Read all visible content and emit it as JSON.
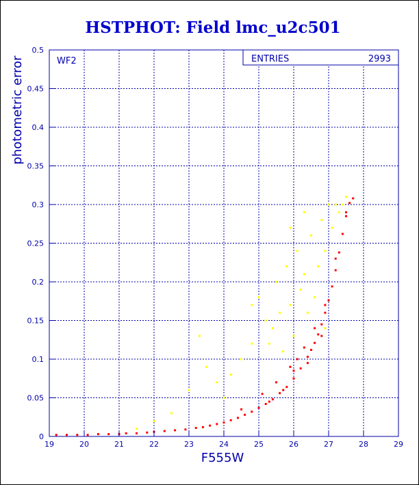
{
  "chart_data": {
    "type": "scatter",
    "title": "HSTPHOT: Field lmc_u2c501",
    "xlabel": "F555W",
    "ylabel": "photometric error",
    "xlim": [
      19,
      29
    ],
    "ylim": [
      0,
      0.5
    ],
    "x_ticks": [
      19,
      20,
      21,
      22,
      23,
      24,
      25,
      26,
      27,
      28,
      29
    ],
    "y_ticks": [
      0,
      0.05,
      0.1,
      0.15,
      0.2,
      0.25,
      0.3,
      0.35,
      0.4,
      0.45,
      0.5
    ],
    "grid": true,
    "panel_label": "WF2",
    "stats_label": "ENTRIES",
    "stats_value": "2993",
    "colors": {
      "title": "#0000cc",
      "axes": "#0000aa",
      "primary_series": "#ff0000",
      "secondary_series": "#ffff00"
    },
    "series": [
      {
        "color": "#ff0000",
        "points": [
          [
            19.2,
            0.002
          ],
          [
            19.5,
            0.002
          ],
          [
            19.8,
            0.002
          ],
          [
            20.1,
            0.002
          ],
          [
            20.4,
            0.003
          ],
          [
            20.7,
            0.003
          ],
          [
            21.0,
            0.003
          ],
          [
            21.2,
            0.004
          ],
          [
            21.5,
            0.004
          ],
          [
            21.8,
            0.005
          ],
          [
            22.0,
            0.006
          ],
          [
            22.3,
            0.007
          ],
          [
            22.6,
            0.008
          ],
          [
            22.9,
            0.009
          ],
          [
            23.2,
            0.011
          ],
          [
            23.4,
            0.012
          ],
          [
            23.6,
            0.014
          ],
          [
            23.8,
            0.016
          ],
          [
            24.0,
            0.018
          ],
          [
            24.2,
            0.021
          ],
          [
            24.4,
            0.024
          ],
          [
            24.6,
            0.028
          ],
          [
            24.8,
            0.032
          ],
          [
            25.0,
            0.037
          ],
          [
            25.2,
            0.042
          ],
          [
            25.4,
            0.048
          ],
          [
            25.6,
            0.056
          ],
          [
            25.8,
            0.064
          ],
          [
            26.0,
            0.075
          ],
          [
            26.2,
            0.088
          ],
          [
            26.4,
            0.103
          ],
          [
            26.5,
            0.112
          ],
          [
            26.6,
            0.121
          ],
          [
            26.7,
            0.132
          ],
          [
            26.8,
            0.145
          ],
          [
            26.9,
            0.16
          ],
          [
            27.0,
            0.176
          ],
          [
            27.1,
            0.194
          ],
          [
            27.2,
            0.215
          ],
          [
            27.3,
            0.238
          ],
          [
            27.4,
            0.262
          ],
          [
            27.5,
            0.285
          ],
          [
            27.6,
            0.302
          ],
          [
            27.7,
            0.308
          ],
          [
            24.5,
            0.035
          ],
          [
            25.1,
            0.055
          ],
          [
            25.5,
            0.07
          ],
          [
            25.9,
            0.09
          ],
          [
            26.1,
            0.1
          ],
          [
            26.3,
            0.115
          ],
          [
            26.6,
            0.14
          ],
          [
            26.9,
            0.17
          ],
          [
            27.2,
            0.23
          ],
          [
            27.5,
            0.29
          ],
          [
            25.3,
            0.045
          ],
          [
            25.7,
            0.06
          ],
          [
            26.0,
            0.085
          ],
          [
            26.4,
            0.095
          ],
          [
            26.8,
            0.13
          ]
        ]
      },
      {
        "color": "#ffff00",
        "points": [
          [
            21.5,
            0.01
          ],
          [
            22.0,
            0.02
          ],
          [
            22.5,
            0.03
          ],
          [
            23.0,
            0.06
          ],
          [
            23.3,
            0.13
          ],
          [
            23.5,
            0.09
          ],
          [
            23.8,
            0.07
          ],
          [
            24.0,
            0.05
          ],
          [
            24.2,
            0.08
          ],
          [
            24.5,
            0.1
          ],
          [
            24.8,
            0.12
          ],
          [
            25.0,
            0.18
          ],
          [
            25.2,
            0.15
          ],
          [
            25.4,
            0.14
          ],
          [
            25.5,
            0.2
          ],
          [
            25.6,
            0.16
          ],
          [
            25.7,
            0.11
          ],
          [
            25.8,
            0.22
          ],
          [
            25.9,
            0.17
          ],
          [
            26.0,
            0.13
          ],
          [
            26.1,
            0.24
          ],
          [
            26.2,
            0.19
          ],
          [
            26.3,
            0.21
          ],
          [
            26.4,
            0.16
          ],
          [
            26.5,
            0.26
          ],
          [
            26.6,
            0.18
          ],
          [
            26.7,
            0.22
          ],
          [
            26.8,
            0.28
          ],
          [
            26.9,
            0.24
          ],
          [
            27.0,
            0.3
          ],
          [
            27.1,
            0.27
          ],
          [
            27.2,
            0.3
          ],
          [
            27.3,
            0.29
          ],
          [
            27.4,
            0.3
          ],
          [
            27.5,
            0.31
          ],
          [
            24.8,
            0.17
          ],
          [
            25.3,
            0.12
          ],
          [
            25.9,
            0.27
          ],
          [
            26.3,
            0.29
          ],
          [
            26.9,
            0.14
          ]
        ]
      }
    ]
  }
}
